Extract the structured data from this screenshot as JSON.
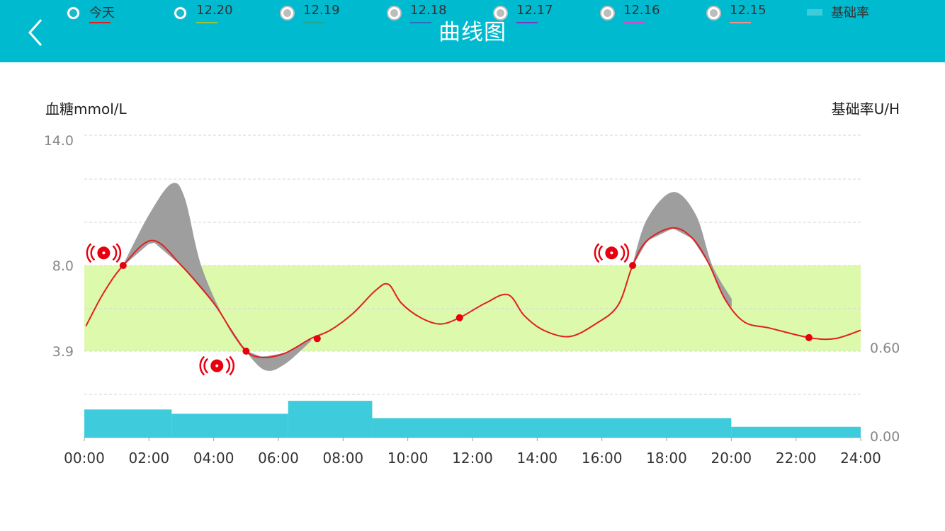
{
  "header": {
    "title": "曲线图",
    "back_icon": "chevron-left-icon",
    "bg_color": "#00bad0"
  },
  "axes": {
    "left_title": "血糖mmol/L",
    "right_title": "基础率U/H"
  },
  "legend": {
    "items": [
      {
        "label": "今天",
        "selected": true,
        "color": "#e02020"
      },
      {
        "label": "12.20",
        "selected": true,
        "color": "#9ac43c"
      },
      {
        "label": "12.19",
        "selected": false,
        "color": "#20a88a"
      },
      {
        "label": "12.18",
        "selected": false,
        "color": "#2a6fc0"
      },
      {
        "label": "12.17",
        "selected": false,
        "color": "#7a3ac8"
      },
      {
        "label": "12.16",
        "selected": false,
        "color": "#d248d0"
      },
      {
        "label": "12.15",
        "selected": false,
        "color": "#f0908a"
      }
    ],
    "basal_label": "基础率",
    "basal_color": "#3ecbdc"
  },
  "chart_data": {
    "type": "line",
    "xlabel": "",
    "x_ticks": [
      "00:00",
      "02:00",
      "04:00",
      "06:00",
      "08:00",
      "10:00",
      "12:00",
      "14:00",
      "16:00",
      "18:00",
      "20:00",
      "22:00",
      "24:00"
    ],
    "y_left": {
      "label": "血糖mmol/L",
      "tick_labels": [
        "14.0",
        "8.0",
        "3.9"
      ],
      "ticks": [
        14.0,
        8.0,
        3.9
      ],
      "range": [
        0,
        14
      ]
    },
    "y_right": {
      "label": "基础率U/H",
      "tick_labels": [
        "0.60",
        "0.00"
      ],
      "ticks": [
        0.6,
        0.0
      ]
    },
    "target_range": {
      "low": 3.9,
      "high": 8.0,
      "color": "#dcf9ac"
    },
    "grid": true,
    "series": [
      {
        "name": "今天",
        "color": "#e02020",
        "x_hours": [
          0.05,
          0.6,
          1.2,
          2.1,
          3.0,
          4.0,
          4.5,
          5.0,
          5.5,
          6.2,
          7.0,
          7.6,
          8.3,
          9.0,
          9.4,
          9.8,
          10.4,
          11.0,
          11.6,
          12.4,
          13.1,
          13.6,
          14.2,
          15.0,
          15.8,
          16.5,
          16.95,
          17.4,
          18.2,
          18.8,
          19.3,
          19.8,
          20.4,
          21.2,
          22.4,
          23.2,
          24.0
        ],
        "glucose": [
          5.1,
          6.7,
          8.0,
          9.2,
          8.0,
          6.2,
          5.0,
          3.9,
          3.6,
          3.8,
          4.5,
          4.9,
          5.7,
          6.8,
          7.1,
          6.2,
          5.5,
          5.2,
          5.5,
          6.2,
          6.6,
          5.6,
          4.9,
          4.6,
          5.2,
          6.1,
          8.0,
          9.2,
          9.8,
          9.3,
          8.1,
          6.4,
          5.3,
          5.0,
          4.55,
          4.5,
          4.9
        ]
      },
      {
        "name": "12.20",
        "color": "#9e9e9e",
        "x_hours": [
          1.2,
          2.0,
          2.7,
          3.1,
          3.6,
          4.4,
          5.0,
          5.6,
          6.2,
          7.0,
          16.95,
          17.4,
          18.2,
          18.9,
          19.4,
          20.0
        ],
        "glucose": [
          8.0,
          10.4,
          11.9,
          11.2,
          8.0,
          5.2,
          3.9,
          3.0,
          3.3,
          4.4,
          8.0,
          10.2,
          11.5,
          10.4,
          8.0,
          6.4
        ]
      }
    ],
    "alarms": [
      {
        "time_hours": 0.6,
        "glucose": 8.6
      },
      {
        "time_hours": 16.3,
        "glucose": 8.6
      },
      {
        "time_hours": 4.1,
        "glucose": 3.2
      }
    ],
    "marker_points": [
      {
        "time_hours": 1.2,
        "glucose": 8.0
      },
      {
        "time_hours": 5.0,
        "glucose": 3.9
      },
      {
        "time_hours": 7.2,
        "glucose": 4.5
      },
      {
        "time_hours": 11.6,
        "glucose": 5.5
      },
      {
        "time_hours": 16.95,
        "glucose": 8.0
      },
      {
        "time_hours": 22.4,
        "glucose": 4.55
      }
    ],
    "basal": {
      "name": "基础率",
      "color": "#3ecbdc",
      "segments": [
        {
          "start_hours": 0,
          "end_hours": 2.7,
          "rate": 0.195
        },
        {
          "start_hours": 2.7,
          "end_hours": 6.3,
          "rate": 0.165
        },
        {
          "start_hours": 6.3,
          "end_hours": 8.9,
          "rate": 0.255
        },
        {
          "start_hours": 8.9,
          "end_hours": 20.0,
          "rate": 0.135
        },
        {
          "start_hours": 20.0,
          "end_hours": 24,
          "rate": 0.075
        }
      ]
    }
  }
}
